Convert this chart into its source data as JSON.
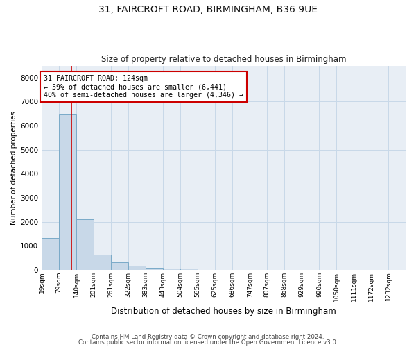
{
  "title_line1": "31, FAIRCROFT ROAD, BIRMINGHAM, B36 9UE",
  "title_line2": "Size of property relative to detached houses in Birmingham",
  "xlabel": "Distribution of detached houses by size in Birmingham",
  "ylabel": "Number of detached properties",
  "bin_labels": [
    "19sqm",
    "79sqm",
    "140sqm",
    "201sqm",
    "261sqm",
    "322sqm",
    "383sqm",
    "443sqm",
    "504sqm",
    "565sqm",
    "625sqm",
    "686sqm",
    "747sqm",
    "807sqm",
    "868sqm",
    "929sqm",
    "990sqm",
    "1050sqm",
    "1111sqm",
    "1172sqm",
    "1232sqm"
  ],
  "bin_edges": [
    19,
    79,
    140,
    201,
    261,
    322,
    383,
    443,
    504,
    565,
    625,
    686,
    747,
    807,
    868,
    929,
    990,
    1050,
    1111,
    1172,
    1232
  ],
  "bar_values": [
    1320,
    6500,
    2100,
    640,
    310,
    160,
    90,
    65,
    50,
    0,
    0,
    0,
    0,
    0,
    0,
    0,
    0,
    0,
    0,
    0
  ],
  "bar_color": "#c8d8e8",
  "bar_edge_color": "#7aaac8",
  "grid_color": "#c8d8e8",
  "property_line_x": 124,
  "property_line_color": "#cc0000",
  "annotation_text": "31 FAIRCROFT ROAD: 124sqm\n← 59% of detached houses are smaller (6,441)\n40% of semi-detached houses are larger (4,346) →",
  "annotation_box_color": "#cc0000",
  "ylim": [
    0,
    8500
  ],
  "yticks": [
    0,
    1000,
    2000,
    3000,
    4000,
    5000,
    6000,
    7000,
    8000
  ],
  "footnote1": "Contains HM Land Registry data © Crown copyright and database right 2024.",
  "footnote2": "Contains public sector information licensed under the Open Government Licence v3.0.",
  "bg_color": "#ffffff",
  "plot_bg_color": "#e8eef5"
}
